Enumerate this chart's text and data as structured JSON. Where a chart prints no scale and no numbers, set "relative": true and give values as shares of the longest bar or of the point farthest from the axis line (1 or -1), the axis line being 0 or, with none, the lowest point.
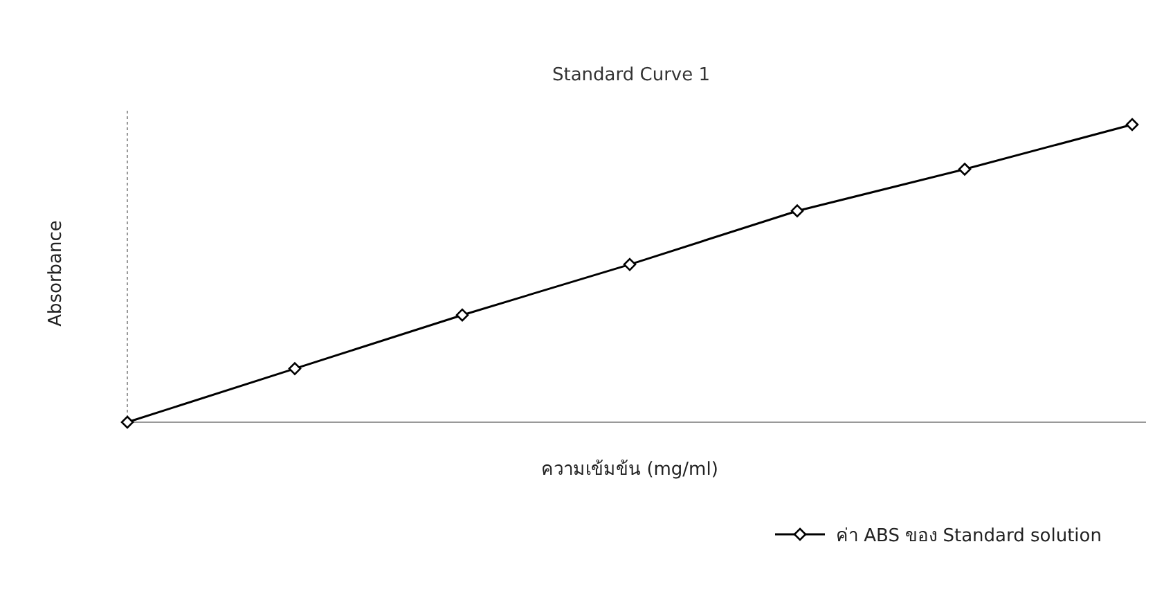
{
  "chart_data": {
    "type": "line",
    "title": "Standard Curve 1",
    "xlabel": "ความเข้มข้น (mg/ml)",
    "ylabel": "Absorbance",
    "relative": true,
    "marker": "diamond",
    "legend": "bottom right",
    "categories": [
      null,
      null,
      null,
      null,
      null,
      null,
      null
    ],
    "series": [
      {
        "name": "ค่า ABS ของ Standard solution",
        "color": "#000000",
        "values": [
          0,
          0.18,
          0.36,
          0.53,
          0.71,
          0.85,
          1
        ]
      }
    ]
  }
}
